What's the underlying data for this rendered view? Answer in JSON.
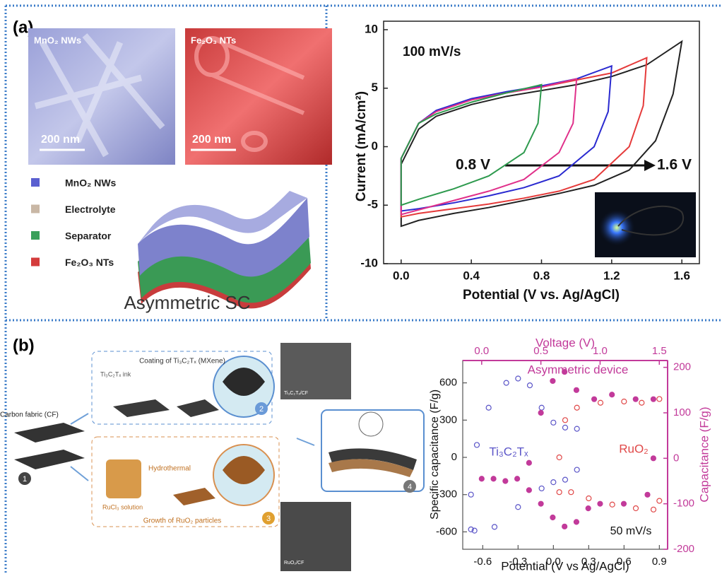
{
  "panel_a": {
    "label": "(a)",
    "images": [
      {
        "label": "MnO₂ NWs",
        "scale_bar": "200 nm"
      },
      {
        "label": "Fe₂O₃ NTs",
        "scale_bar": "200 nm"
      }
    ],
    "legend": [
      {
        "label": "MnO₂ NWs",
        "color": "#5a5fd0"
      },
      {
        "label": "Electrolyte",
        "color": "#c9b7a5"
      },
      {
        "label": "Separator",
        "color": "#3aa05a"
      },
      {
        "label": "Fe₂O₃ NTs",
        "color": "#d43c3c"
      }
    ],
    "caption": "Asymmetric SC"
  },
  "panel_b": {
    "label": "(b)",
    "carbon_fabric": "Carbon fabric (CF)",
    "coating_box": "Coating of Ti₃C₂Tₓ (MXene)",
    "ink": "Ti₃C₂Tₓ ink",
    "hydrothermal": "Hydrothermal",
    "solution": "RuCl₃ solution",
    "growth_box": "Growth of RuO₂ particles",
    "sem_top": "Ti₃C₂Tₓ/CF",
    "sem_bottom": "RuO₂/CF",
    "steps": [
      "1",
      "2",
      "3",
      "4"
    ]
  },
  "chart_data": [
    {
      "type": "line",
      "xlabel": "Potential (V vs. Ag/AgCl)",
      "ylabel": "Current (mA/cm²)",
      "annotations": [
        "100 mV/s",
        "0.8 V",
        "1.6 V"
      ],
      "xlim": [
        -0.1,
        1.7
      ],
      "ylim": [
        -10,
        10
      ],
      "xticks": [
        {
          "value": 0,
          "label": "0.0"
        },
        0.4,
        0.8,
        1.2,
        1.6
      ],
      "yticks": [
        -10,
        -5,
        0,
        5,
        10
      ],
      "series": [
        {
          "color": "#222222",
          "x": [
            0,
            0,
            0.1,
            0.2,
            0.4,
            0.6,
            0.8,
            1.0,
            1.2,
            1.4,
            1.6,
            1.55,
            1.45,
            1.3,
            1.1,
            0.9,
            0.7,
            0.5,
            0.3,
            0.1,
            0
          ],
          "values": [
            -6.8,
            -1.5,
            1.5,
            2.6,
            3.6,
            4.3,
            4.8,
            5.3,
            6,
            7,
            9,
            4.5,
            0.5,
            -2,
            -3.3,
            -4,
            -4.6,
            -5.2,
            -5.7,
            -6.3,
            -6.8
          ]
        },
        {
          "color": "#e53b3b",
          "x": [
            0,
            0,
            0.1,
            0.2,
            0.4,
            0.6,
            0.8,
            1.0,
            1.2,
            1.4,
            1.38,
            1.3,
            1.1,
            0.9,
            0.7,
            0.5,
            0.3,
            0.1,
            0
          ],
          "values": [
            -6,
            -1,
            2,
            3,
            4,
            4.6,
            5.1,
            5.7,
            6.3,
            7.6,
            3.5,
            0,
            -2.8,
            -3.8,
            -4.4,
            -4.9,
            -5.3,
            -5.7,
            -6
          ]
        },
        {
          "color": "#2a2ad0",
          "x": [
            0,
            0,
            0.1,
            0.2,
            0.4,
            0.6,
            0.8,
            1.0,
            1.2,
            1.18,
            1.1,
            0.9,
            0.7,
            0.5,
            0.3,
            0.1,
            0
          ],
          "values": [
            -5.5,
            -1,
            2,
            3.1,
            4.1,
            4.7,
            5.2,
            5.8,
            6.9,
            3,
            0,
            -2.5,
            -3.5,
            -4.2,
            -4.8,
            -5.3,
            -5.5
          ]
        },
        {
          "color": "#e0308a",
          "x": [
            0,
            0,
            0.1,
            0.2,
            0.4,
            0.6,
            0.8,
            1.0,
            0.98,
            0.9,
            0.7,
            0.5,
            0.3,
            0.1,
            0
          ],
          "values": [
            -5.8,
            -1,
            2,
            3,
            4,
            4.6,
            5.1,
            5.8,
            2,
            -0.5,
            -2.8,
            -3.8,
            -4.6,
            -5.4,
            -5.8
          ]
        },
        {
          "color": "#2e9a4e",
          "x": [
            0,
            0,
            0.1,
            0.2,
            0.4,
            0.6,
            0.8,
            0.78,
            0.7,
            0.5,
            0.3,
            0.1,
            0
          ],
          "values": [
            -5,
            -1,
            2,
            2.8,
            3.8,
            4.6,
            5.3,
            2,
            -0.5,
            -2.5,
            -3.6,
            -4.5,
            -5
          ]
        }
      ]
    },
    {
      "type": "scatter",
      "xlabel": "Potential (V vs Ag/AgCl)",
      "ylabel": "Specific capacitance (F/g)",
      "x2label": "Voltage (V)",
      "y2label": "Capacitance (F/g)",
      "annotations": [
        "50 mV/s"
      ],
      "axis2_color": "#c23a9a",
      "xlim": [
        -0.77,
        0.97
      ],
      "ylim": [
        -740,
        780
      ],
      "x2lim": [
        -0.16,
        1.57
      ],
      "y2lim": [
        -200,
        215
      ],
      "xticks": [
        -0.6,
        -0.3,
        {
          "value": 0,
          "label": "0.0"
        },
        0.3,
        0.6,
        0.9
      ],
      "yticks": [
        -600,
        -300,
        0,
        300,
        600
      ],
      "x2ticks": [
        {
          "value": 0,
          "label": "0.0"
        },
        0.5,
        {
          "value": 1,
          "label": "1.0"
        },
        1.5
      ],
      "y2ticks": [
        -200,
        -100,
        0,
        100,
        200
      ],
      "series": [
        {
          "name": "Ti₃C₂Tₓ",
          "color": "#5b55c8",
          "filled": false,
          "x": [
            -0.7,
            -0.7,
            -0.65,
            -0.55,
            -0.4,
            -0.3,
            -0.2,
            -0.1,
            0.0,
            0.1,
            0.2,
            0.2,
            0.1,
            0.0,
            -0.1,
            -0.3,
            -0.5,
            -0.67
          ],
          "values": [
            -580,
            -300,
            100,
            400,
            600,
            635,
            580,
            400,
            280,
            240,
            230,
            -100,
            -180,
            -200,
            -250,
            -400,
            -560,
            -590
          ]
        },
        {
          "name": "RuO₂",
          "color": "#e04848",
          "filled": false,
          "x": [
            0.05,
            0.05,
            0.1,
            0.2,
            0.4,
            0.6,
            0.75,
            0.9,
            0.9,
            0.85,
            0.7,
            0.5,
            0.3,
            0.15
          ],
          "values": [
            -280,
            0,
            300,
            400,
            440,
            450,
            440,
            470,
            -350,
            -420,
            -410,
            -380,
            -330,
            -280
          ]
        },
        {
          "name": "Asymmetric device",
          "color": "#c23a9a",
          "filled": true,
          "axis": "y2",
          "x": [
            0,
            0.2,
            0.4,
            0.5,
            0.6,
            0.7,
            0.8,
            0.9,
            1.0,
            1.2,
            1.4,
            1.45,
            1.45,
            1.3,
            1.1,
            0.95,
            0.8,
            0.7,
            0.6,
            0.5,
            0.4,
            0.3,
            0.1
          ],
          "values": [
            -45,
            -50,
            -70,
            -100,
            -130,
            -150,
            -140,
            -110,
            -100,
            -100,
            -80,
            0,
            130,
            130,
            140,
            130,
            150,
            190,
            170,
            100,
            -10,
            -45,
            -45
          ]
        }
      ]
    }
  ]
}
